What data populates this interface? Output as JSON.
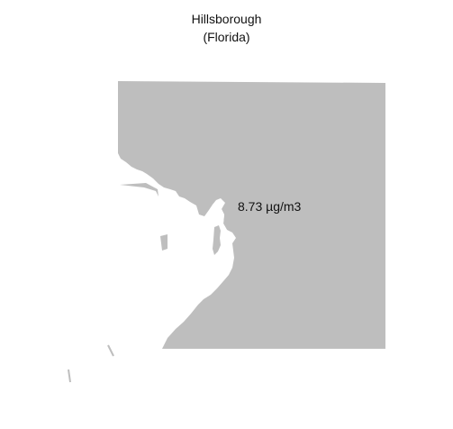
{
  "title": {
    "line1": "Hillsborough",
    "line2": "(Florida)"
  },
  "map": {
    "region_name": "Hillsborough",
    "value_label": "8.73 µg/m3",
    "fill_color": "#bebebe",
    "background_color": "#ffffff"
  }
}
